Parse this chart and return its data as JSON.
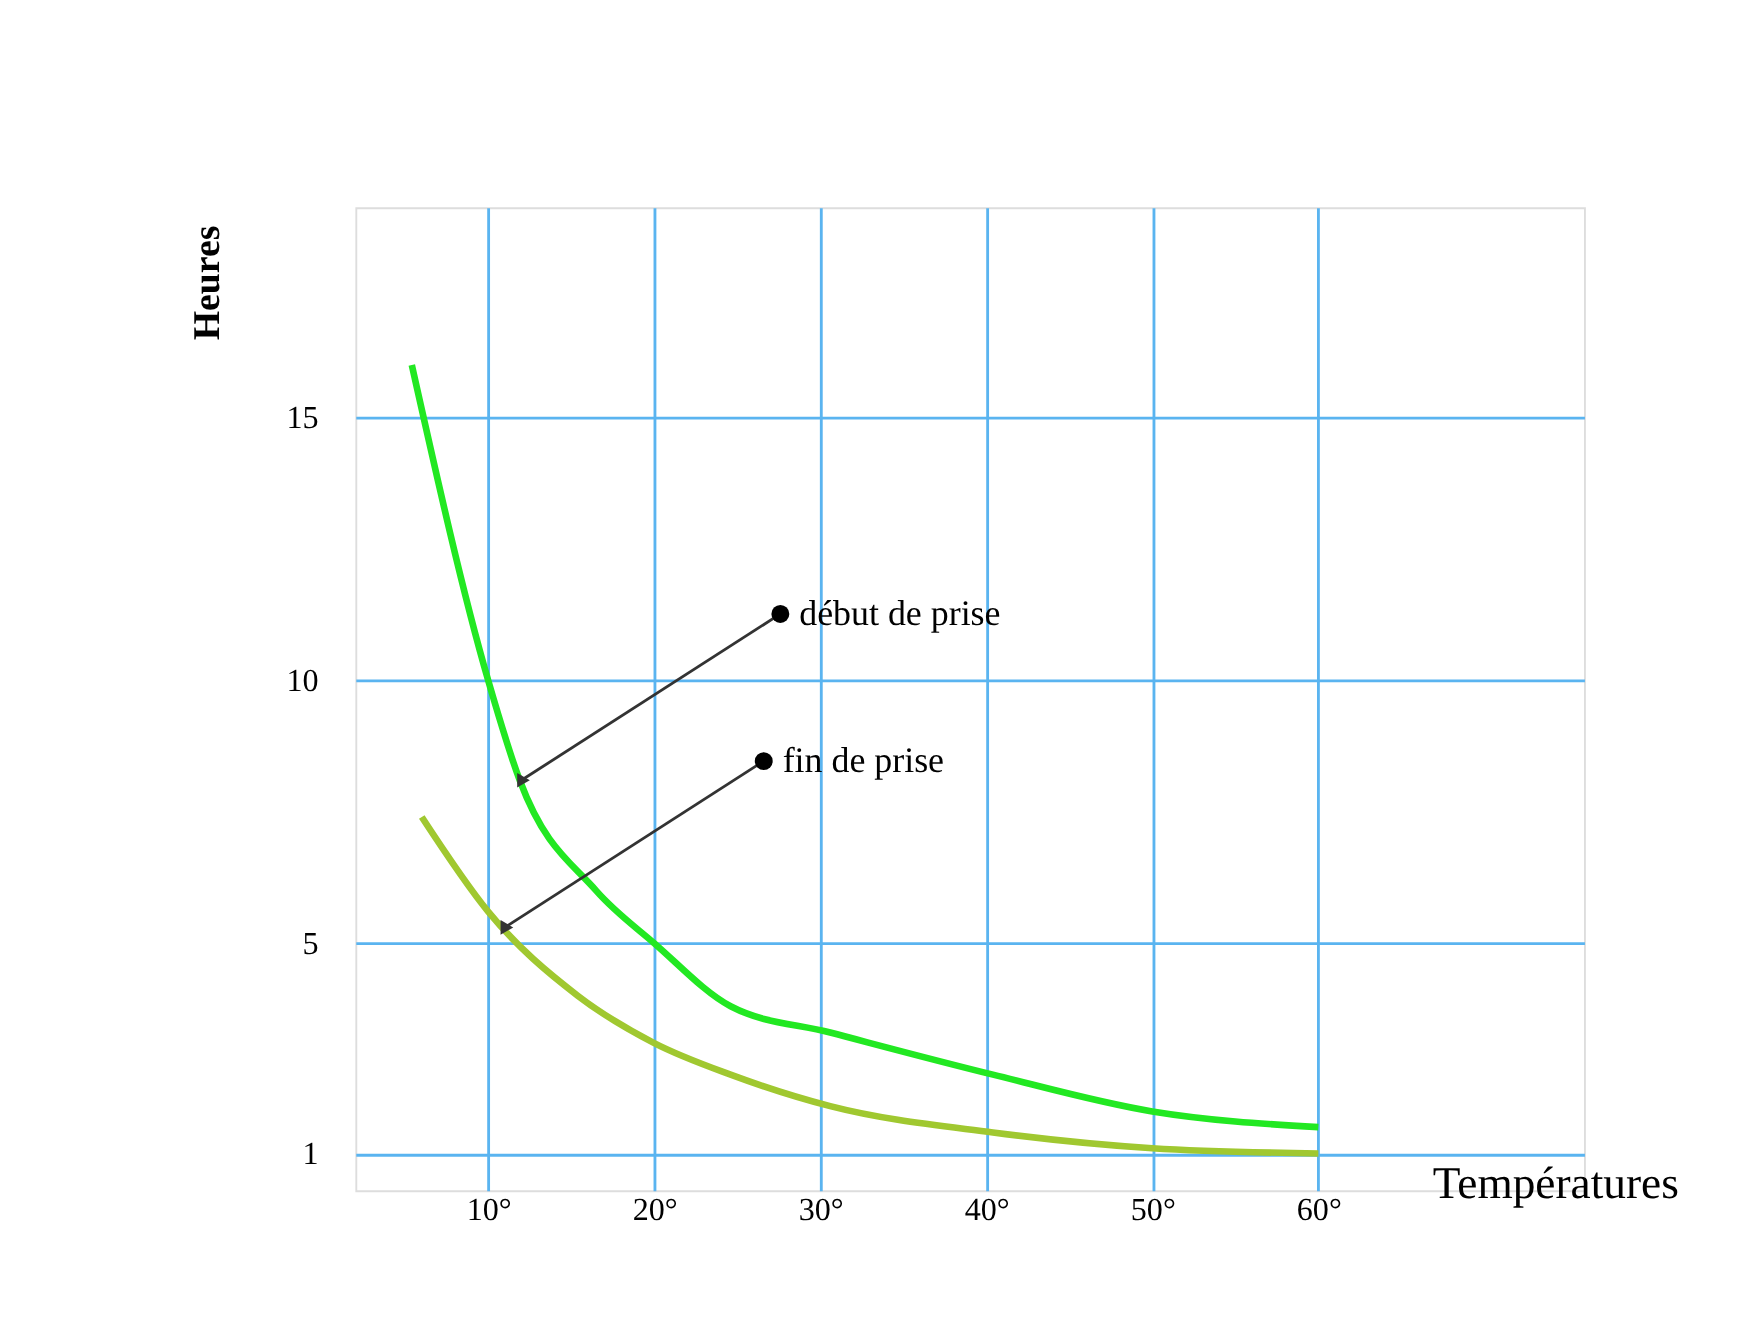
{
  "chart_data": {
    "type": "line",
    "xlabel": "Températures",
    "ylabel": "Heures",
    "xlim": [
      2,
      76
    ],
    "ylim": [
      0.3,
      19
    ],
    "xticks": [
      {
        "value": 10,
        "label": "10°"
      },
      {
        "value": 20,
        "label": "20°"
      },
      {
        "value": 30,
        "label": "30°"
      },
      {
        "value": 40,
        "label": "40°"
      },
      {
        "value": 50,
        "label": "50°"
      },
      {
        "value": 60,
        "label": "60°"
      }
    ],
    "yticks": [
      1,
      5,
      10,
      15
    ],
    "grid": true,
    "marker": "none",
    "line_style": "solid",
    "series": [
      {
        "color": "#22e822",
        "x": [
          5.4,
          10,
          11.9,
          16.5,
          20,
          24.6,
          30.6,
          40.4,
          50,
          60
        ],
        "values": [
          16.0,
          10.0,
          8.1,
          6.0,
          5.0,
          3.8,
          3.3,
          2.5,
          1.8,
          1.5
        ]
      },
      {
        "color": "#a0c830",
        "x": [
          6,
          10,
          15.4,
          20,
          24.6,
          30.6,
          40.4,
          50,
          60
        ],
        "values": [
          7.4,
          5.6,
          4.0,
          3.1,
          2.5,
          1.9,
          1.4,
          1.1,
          1.0
        ]
      }
    ],
    "annotations": [
      {
        "text": "début de prise",
        "x": 12,
        "y": 8.1
      },
      {
        "text": "fin de prise",
        "x": 11,
        "y": 5.3
      }
    ]
  }
}
